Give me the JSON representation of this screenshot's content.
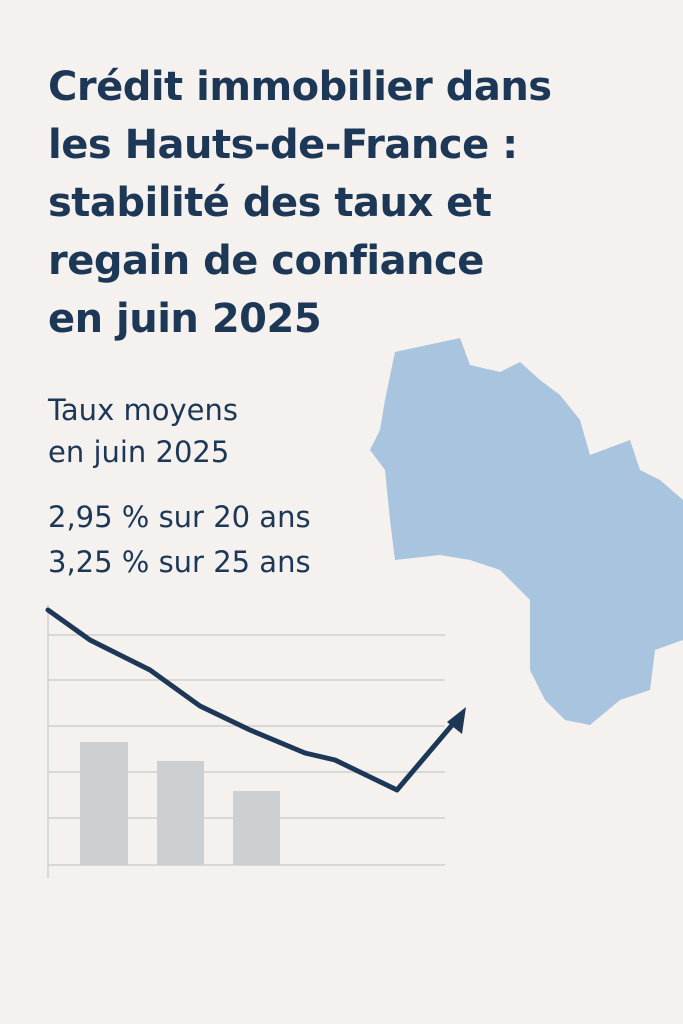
{
  "header": {
    "title_lines": [
      "Crédit immobilier dans",
      "les Hauts-de-France :",
      "stabilité des taux et",
      "regain de confiance",
      "en juin 2025"
    ]
  },
  "rates": {
    "heading_lines": [
      "Taux moyens",
      "en juin 2025"
    ],
    "items": [
      "2,95 % sur 20 ans",
      "3,25 % sur 25 ans"
    ]
  }
}
